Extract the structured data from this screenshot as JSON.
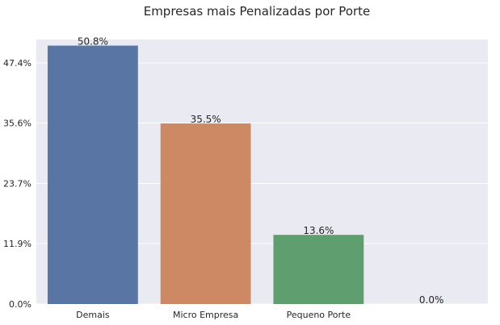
{
  "chart_data": {
    "type": "bar",
    "title": "Empresas mais Penalizadas por Porte",
    "xlabel": "",
    "ylabel": "",
    "categories": [
      "Demais",
      "Micro Empresa",
      "Pequeno Porte",
      ""
    ],
    "values": [
      50.8,
      35.5,
      13.6,
      0.0
    ],
    "data_labels": [
      "50.8%",
      "35.5%",
      "13.6%",
      "0.0%"
    ],
    "y_ticks": [
      0.0,
      11.9,
      23.7,
      35.6,
      47.4
    ],
    "y_tick_labels": [
      "0.0%",
      "11.9%",
      "23.7%",
      "35.6%",
      "47.4%"
    ],
    "ylim": [
      0,
      52
    ],
    "grid": true,
    "legend": "none",
    "colors": [
      "#5875a4",
      "#cc8963",
      "#5f9e6e",
      "#b55d60"
    ],
    "background": "#eaeaf2",
    "grid_color": "#ffffff"
  }
}
